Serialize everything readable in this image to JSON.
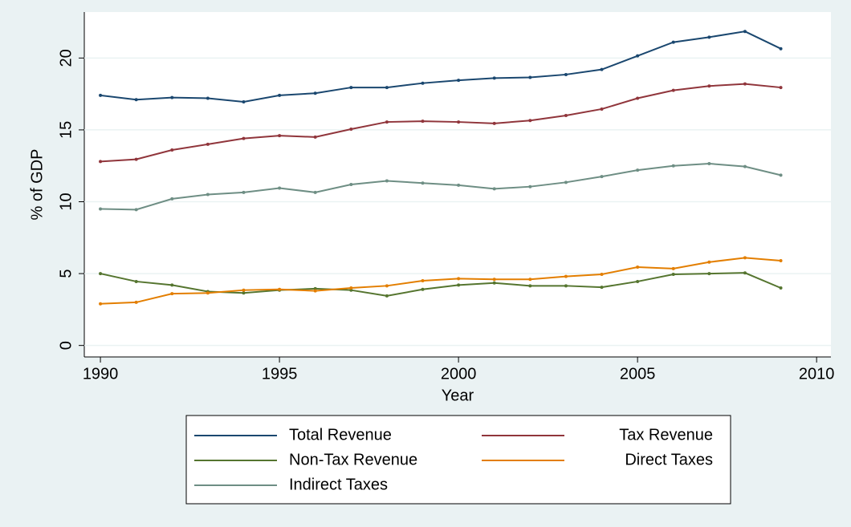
{
  "chart_data": {
    "type": "line",
    "x_label": "Year",
    "y_label": "% of GDP",
    "x": [
      1990,
      1991,
      1992,
      1993,
      1994,
      1995,
      1996,
      1997,
      1998,
      1999,
      2000,
      2001,
      2002,
      2003,
      2004,
      2005,
      2006,
      2007,
      2008,
      2009
    ],
    "xlim": [
      1989.55,
      2010.4
    ],
    "xticks": [
      1990,
      1995,
      2000,
      2005,
      2010
    ],
    "ylim": [
      -0.8,
      23.2
    ],
    "yticks": [
      0,
      5,
      10,
      15,
      20
    ],
    "grid": true,
    "series": [
      {
        "name": "Total Revenue",
        "color": "#1a476f",
        "values": [
          17.4,
          17.1,
          17.25,
          17.2,
          16.95,
          17.4,
          17.55,
          17.95,
          17.95,
          18.25,
          18.45,
          18.6,
          18.65,
          18.85,
          19.2,
          20.15,
          21.1,
          21.45,
          21.85,
          20.65
        ]
      },
      {
        "name": "Tax Revenue",
        "color": "#90353b",
        "values": [
          12.8,
          12.95,
          13.6,
          14.0,
          14.4,
          14.6,
          14.5,
          15.05,
          15.55,
          15.6,
          15.55,
          15.45,
          15.65,
          16.0,
          16.45,
          17.2,
          17.75,
          18.05,
          18.2,
          17.95
        ]
      },
      {
        "name": "Non-Tax Revenue",
        "color": "#55752f",
        "values": [
          5.0,
          4.45,
          4.2,
          3.75,
          3.65,
          3.85,
          3.95,
          3.85,
          3.45,
          3.9,
          4.2,
          4.35,
          4.15,
          4.15,
          4.05,
          4.45,
          4.95,
          5.0,
          5.05,
          4.0
        ]
      },
      {
        "name": "Direct Taxes",
        "color": "#e37e00",
        "values": [
          2.9,
          3.0,
          3.6,
          3.65,
          3.85,
          3.9,
          3.8,
          4.0,
          4.15,
          4.5,
          4.65,
          4.6,
          4.6,
          4.8,
          4.95,
          5.45,
          5.35,
          5.8,
          6.1,
          5.9
        ]
      },
      {
        "name": "Indirect Taxes",
        "color": "#6e8e84",
        "values": [
          9.5,
          9.45,
          10.2,
          10.5,
          10.65,
          10.95,
          10.65,
          11.2,
          11.45,
          11.3,
          11.15,
          10.9,
          11.05,
          11.35,
          11.75,
          12.2,
          12.5,
          12.65,
          12.45,
          11.85
        ]
      }
    ]
  }
}
